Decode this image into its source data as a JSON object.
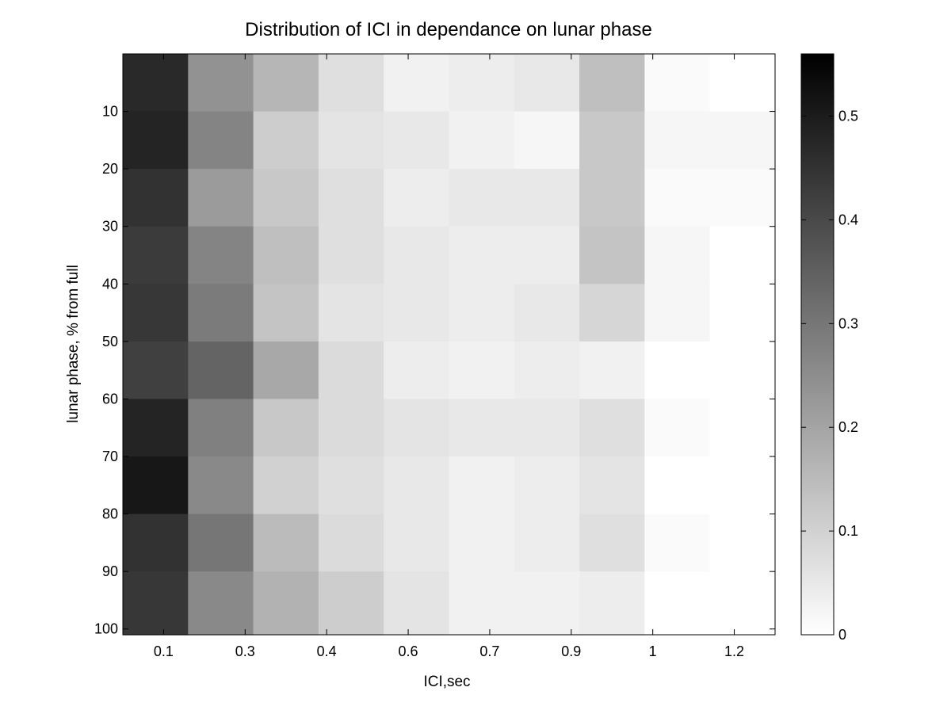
{
  "chart_data": {
    "type": "heatmap",
    "title": "Distribution of ICI in dependance on lunar phase",
    "xlabel": "ICI,sec",
    "ylabel": "lunar phase, % from full",
    "x_tick_labels": [
      "0.1",
      "0.3",
      "0.4",
      "0.6",
      "0.7",
      "0.9",
      "1",
      "1.2"
    ],
    "columns": [
      "0.1",
      "0.2",
      "0.3",
      "0.4",
      "0.6",
      "0.7",
      "0.8",
      "0.9",
      "1",
      "1.2"
    ],
    "y_ticks": [
      10,
      20,
      30,
      40,
      50,
      60,
      70,
      80,
      90,
      100
    ],
    "ylim": [
      0,
      101
    ],
    "colormap": "gray-reversed",
    "colorbar": {
      "ticks": [
        0,
        0.1,
        0.2,
        0.3,
        0.4,
        0.5
      ],
      "range": [
        0,
        0.56
      ]
    },
    "row_bins": [
      {
        "from": 0,
        "to": 10,
        "values": [
          0.47,
          0.24,
          0.16,
          0.07,
          0.03,
          0.04,
          0.05,
          0.14,
          0.01,
          0.0
        ]
      },
      {
        "from": 10,
        "to": 20,
        "values": [
          0.48,
          0.27,
          0.11,
          0.06,
          0.05,
          0.03,
          0.02,
          0.12,
          0.02,
          0.02
        ]
      },
      {
        "from": 20,
        "to": 30,
        "values": [
          0.45,
          0.22,
          0.12,
          0.07,
          0.04,
          0.05,
          0.05,
          0.12,
          0.01,
          0.01
        ]
      },
      {
        "from": 30,
        "to": 40,
        "values": [
          0.43,
          0.27,
          0.14,
          0.07,
          0.05,
          0.04,
          0.04,
          0.13,
          0.02,
          0.0
        ]
      },
      {
        "from": 40,
        "to": 50,
        "values": [
          0.44,
          0.29,
          0.13,
          0.06,
          0.05,
          0.04,
          0.05,
          0.09,
          0.02,
          0.0
        ]
      },
      {
        "from": 50,
        "to": 60,
        "values": [
          0.42,
          0.34,
          0.19,
          0.08,
          0.04,
          0.03,
          0.04,
          0.03,
          0.0,
          0.0
        ]
      },
      {
        "from": 60,
        "to": 70,
        "values": [
          0.48,
          0.28,
          0.12,
          0.08,
          0.06,
          0.05,
          0.05,
          0.07,
          0.01,
          0.0
        ]
      },
      {
        "from": 70,
        "to": 80,
        "values": [
          0.51,
          0.26,
          0.1,
          0.07,
          0.05,
          0.03,
          0.04,
          0.06,
          0.0,
          0.0
        ]
      },
      {
        "from": 80,
        "to": 90,
        "values": [
          0.45,
          0.3,
          0.15,
          0.08,
          0.05,
          0.03,
          0.04,
          0.07,
          0.01,
          0.0
        ]
      },
      {
        "from": 90,
        "to": 101,
        "values": [
          0.44,
          0.26,
          0.17,
          0.11,
          0.06,
          0.03,
          0.03,
          0.04,
          0.0,
          0.0
        ]
      }
    ]
  }
}
